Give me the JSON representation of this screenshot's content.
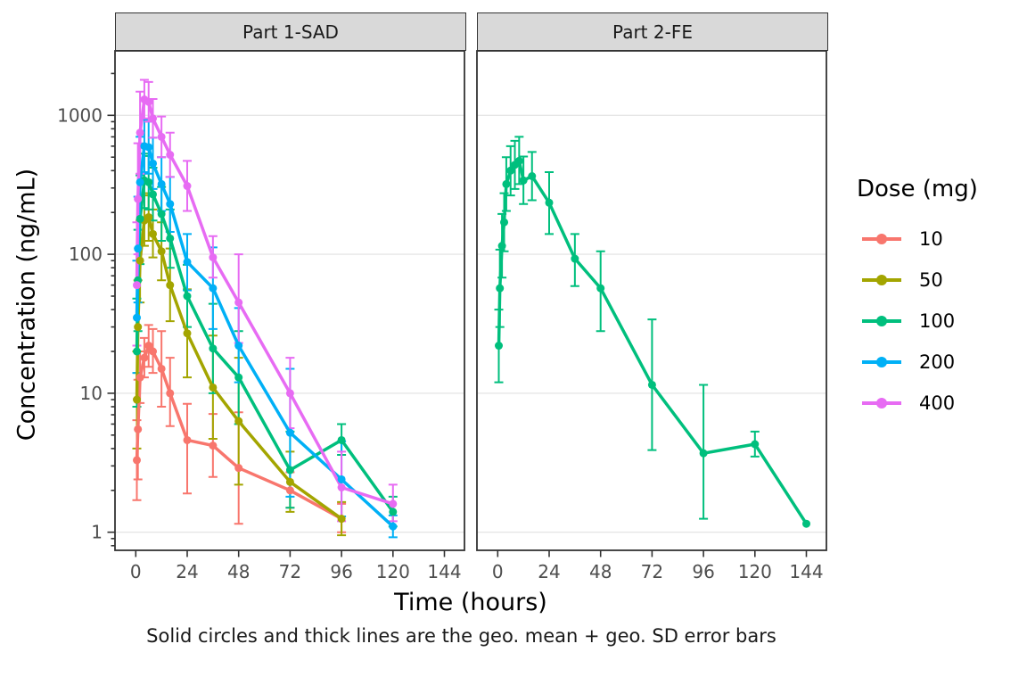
{
  "chart_data": {
    "type": "line",
    "title": "",
    "xlabel": "Time (hours)",
    "ylabel": "Concentration (ng/mL)",
    "caption": "Solid circles and thick lines are the geo. mean + geo. SD error bars",
    "y_scale": "log10",
    "x_ticks": [
      0,
      24,
      48,
      72,
      96,
      120,
      144
    ],
    "y_major_ticks": [
      1,
      10,
      100,
      1000
    ],
    "ylim": [
      0.75,
      2900
    ],
    "xlim": [
      -10,
      154
    ],
    "grid": "major-horizontal-only",
    "point_format": [
      "time_h",
      "geo_mean",
      "err_lo",
      "err_hi"
    ],
    "facets": [
      {
        "label": "Part 1-SAD"
      },
      {
        "label": "Part 2-FE"
      }
    ],
    "legend": {
      "title": "Dose (mg)",
      "position": "right",
      "entries": [
        {
          "label": "10",
          "color": "#F8766D"
        },
        {
          "label": "50",
          "color": "#A3A500"
        },
        {
          "label": "100",
          "color": "#00BF7D"
        },
        {
          "label": "200",
          "color": "#00B0F6"
        },
        {
          "label": "400",
          "color": "#E76BF3"
        }
      ]
    },
    "series": [
      {
        "name": "10",
        "dose_mg": 10,
        "facet": 0,
        "color": "#F8766D",
        "points": [
          [
            0.5,
            3.3,
            1.7,
            6.4
          ],
          [
            1,
            5.5,
            2.4,
            12.5
          ],
          [
            2,
            13,
            8.5,
            20
          ],
          [
            4,
            18,
            13,
            25
          ],
          [
            6,
            22,
            15.5,
            31
          ],
          [
            8,
            20,
            14,
            29
          ],
          [
            12,
            15,
            8,
            28
          ],
          [
            16,
            10,
            5.8,
            18
          ],
          [
            24,
            4.6,
            1.9,
            8.4
          ],
          [
            36,
            4.2,
            2.5,
            7.1
          ],
          [
            48,
            2.9,
            1.15,
            7.3
          ],
          [
            72,
            2.0,
            1.5,
            2.7
          ],
          [
            96,
            1.25,
            1.0,
            1.6
          ]
        ]
      },
      {
        "name": "50",
        "dose_mg": 50,
        "facet": 0,
        "color": "#A3A500",
        "points": [
          [
            0.5,
            9,
            4,
            20
          ],
          [
            1,
            30,
            14,
            65
          ],
          [
            2,
            90,
            45,
            175
          ],
          [
            4,
            175,
            115,
            265
          ],
          [
            6,
            185,
            125,
            275
          ],
          [
            8,
            140,
            95,
            210
          ],
          [
            12,
            105,
            65,
            170
          ],
          [
            16,
            60,
            33,
            110
          ],
          [
            24,
            27,
            13,
            56
          ],
          [
            36,
            11,
            4.7,
            26
          ],
          [
            48,
            6.3,
            2.2,
            18
          ],
          [
            72,
            2.3,
            1.4,
            3.8
          ],
          [
            96,
            1.25,
            0.95,
            1.65
          ]
        ]
      },
      {
        "name": "100",
        "dose_mg": 100,
        "facet": 0,
        "color": "#00BF7D",
        "points": [
          [
            0.5,
            20,
            8,
            48
          ],
          [
            1,
            65,
            28,
            150
          ],
          [
            2,
            180,
            85,
            370
          ],
          [
            4,
            340,
            215,
            530
          ],
          [
            6,
            330,
            210,
            510
          ],
          [
            8,
            270,
            175,
            420
          ],
          [
            12,
            195,
            125,
            305
          ],
          [
            16,
            130,
            80,
            210
          ],
          [
            24,
            50,
            30,
            84
          ],
          [
            36,
            21,
            10,
            44
          ],
          [
            48,
            13,
            6,
            28
          ],
          [
            72,
            2.8,
            1.5,
            5.3
          ],
          [
            96,
            4.6,
            3.6,
            6.0
          ],
          [
            120,
            1.4,
            1.1,
            1.8
          ]
        ]
      },
      {
        "name": "200",
        "dose_mg": 200,
        "facet": 0,
        "color": "#00B0F6",
        "points": [
          [
            0.5,
            35,
            14,
            90
          ],
          [
            1,
            110,
            45,
            260
          ],
          [
            2,
            330,
            150,
            700
          ],
          [
            4,
            600,
            390,
            930
          ],
          [
            6,
            590,
            380,
            900
          ],
          [
            8,
            450,
            295,
            690
          ],
          [
            12,
            320,
            205,
            500
          ],
          [
            16,
            230,
            145,
            360
          ],
          [
            24,
            88,
            55,
            140
          ],
          [
            36,
            57,
            29,
            112
          ],
          [
            48,
            22,
            12,
            41
          ],
          [
            72,
            5.2,
            1.8,
            15
          ],
          [
            96,
            2.4,
            1.3,
            4.5
          ],
          [
            120,
            1.1,
            0.92,
            1.32
          ]
        ]
      },
      {
        "name": "400",
        "dose_mg": 400,
        "facet": 0,
        "color": "#E76BF3",
        "points": [
          [
            0.5,
            60,
            22,
            170
          ],
          [
            1,
            250,
            100,
            630
          ],
          [
            2,
            750,
            380,
            1480
          ],
          [
            4,
            1300,
            950,
            1800
          ],
          [
            6,
            1250,
            900,
            1740
          ],
          [
            8,
            950,
            690,
            1310
          ],
          [
            12,
            700,
            500,
            980
          ],
          [
            16,
            520,
            360,
            750
          ],
          [
            24,
            310,
            205,
            470
          ],
          [
            36,
            95,
            68,
            135
          ],
          [
            48,
            45,
            23,
            100
          ],
          [
            72,
            10,
            5.6,
            18
          ],
          [
            96,
            2.1,
            1.2,
            3.8
          ],
          [
            120,
            1.6,
            1.2,
            2.2
          ]
        ]
      },
      {
        "name": "100",
        "dose_mg": 100,
        "facet": 1,
        "color": "#00BF7D",
        "points": [
          [
            0.5,
            22,
            12,
            40
          ],
          [
            1,
            57,
            30,
            108
          ],
          [
            2,
            115,
            68,
            195
          ],
          [
            3,
            170,
            105,
            275
          ],
          [
            4,
            320,
            205,
            500
          ],
          [
            6,
            400,
            265,
            600
          ],
          [
            8,
            440,
            295,
            655
          ],
          [
            10,
            470,
            320,
            700
          ],
          [
            12,
            340,
            230,
            505
          ],
          [
            16,
            365,
            245,
            545
          ],
          [
            24,
            235,
            140,
            390
          ],
          [
            36,
            93,
            59,
            140
          ],
          [
            48,
            57,
            28,
            105
          ],
          [
            72,
            11.5,
            3.9,
            34
          ],
          [
            96,
            3.7,
            1.25,
            11.5
          ],
          [
            120,
            4.3,
            3.5,
            5.3
          ],
          [
            144,
            1.15,
            null,
            null
          ]
        ]
      }
    ],
    "colors": {
      "strip_bg": "#D9D9D9",
      "panel_border": "#333333",
      "grid": "#E6E6E6",
      "tick_label": "#4D4D4D"
    }
  }
}
